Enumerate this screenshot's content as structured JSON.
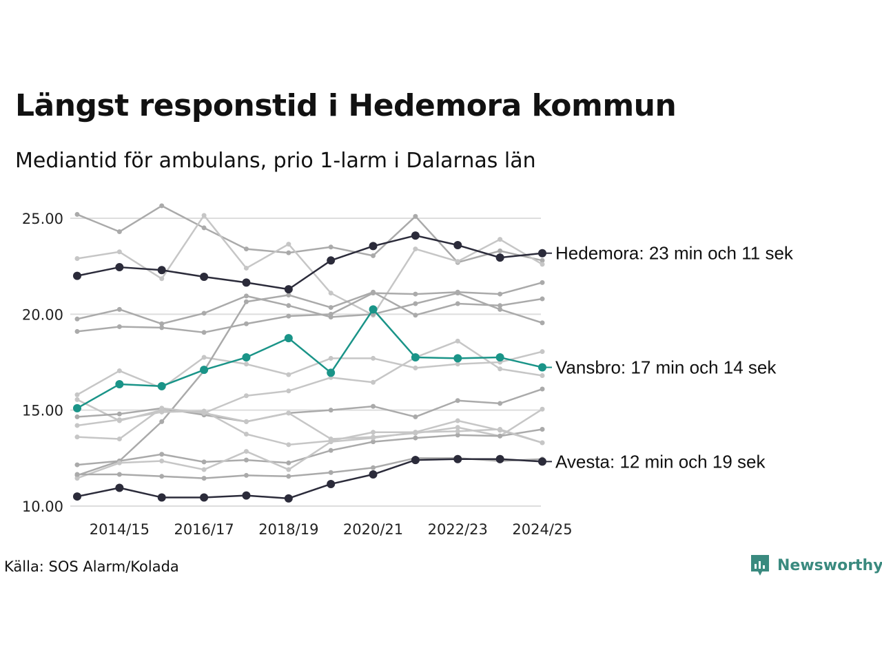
{
  "title": "Längst responstid i Hedemora kommun",
  "subtitle": "Mediantid för ambulans, prio 1-larm i Dalarnas län",
  "source": "Källa: SOS Alarm/Kolada",
  "brand": {
    "name": "Newsworthy",
    "icon": "newsworthy-logo-icon",
    "color": "#3a8a7f"
  },
  "colors": {
    "highlight_dark": "#2b2b3a",
    "highlight_teal": "#1a9488",
    "background_lines": [
      "#aaaaaa",
      "#c6c6c6"
    ],
    "grid": "#dddddd"
  },
  "chart_data": {
    "type": "line",
    "x": [
      "2013/14",
      "2014/15",
      "2015/16",
      "2016/17",
      "2017/18",
      "2018/19",
      "2019/20",
      "2020/21",
      "2021/22",
      "2022/23",
      "2023/24",
      "2024/25"
    ],
    "x_tick_labels": [
      "2014/15",
      "2016/17",
      "2018/19",
      "2020/21",
      "2022/23",
      "2024/25"
    ],
    "y_ticks": [
      10,
      15,
      20,
      25
    ],
    "y_tick_labels": [
      "10.00",
      "15.00",
      "20.00",
      "25.00"
    ],
    "ylim": [
      10,
      25.8
    ],
    "grid": "horizontal",
    "xlabel": "",
    "ylabel": "",
    "highlighted": [
      {
        "label": "Hedemora: 23 min och 11 sek",
        "color": "#2b2b3a",
        "values": [
          22.0,
          22.45,
          22.3,
          21.95,
          21.65,
          21.3,
          22.8,
          23.55,
          24.1,
          23.6,
          22.95,
          23.18
        ]
      },
      {
        "label": "Vansbro: 17 min och 14 sek",
        "color": "#1a9488",
        "values": [
          15.1,
          16.35,
          16.25,
          17.1,
          17.75,
          18.75,
          16.95,
          20.25,
          17.75,
          17.7,
          17.75,
          17.23
        ]
      },
      {
        "label": "Avesta: 12 min och 19 sek",
        "color": "#2b2b3a",
        "values": [
          10.5,
          10.95,
          10.45,
          10.45,
          10.55,
          10.4,
          11.15,
          11.65,
          12.4,
          12.45,
          12.45,
          12.32
        ]
      }
    ],
    "background_series": [
      {
        "values": [
          25.2,
          24.3,
          25.65,
          24.5,
          23.4,
          23.2,
          23.5,
          23.05,
          25.1,
          22.7,
          23.3,
          22.8
        ],
        "color": "#aaaaaa"
      },
      {
        "values": [
          22.9,
          23.25,
          21.85,
          25.15,
          22.4,
          23.65,
          21.1,
          19.95,
          23.4,
          22.75,
          23.9,
          22.6
        ],
        "color": "#c6c6c6"
      },
      {
        "values": [
          19.75,
          20.25,
          19.5,
          20.05,
          20.95,
          20.45,
          19.85,
          20.0,
          20.55,
          21.1,
          20.25,
          19.55
        ],
        "color": "#aaaaaa"
      },
      {
        "values": [
          19.1,
          19.35,
          19.3,
          19.05,
          19.5,
          19.9,
          20.0,
          21.1,
          21.05,
          21.15,
          21.05,
          21.65
        ],
        "color": "#aaaaaa"
      },
      {
        "values": [
          15.8,
          17.05,
          16.15,
          17.75,
          17.4,
          16.85,
          17.7,
          17.7,
          17.2,
          17.4,
          17.5,
          18.05
        ],
        "color": "#c6c6c6"
      },
      {
        "values": [
          15.55,
          14.45,
          15.0,
          14.85,
          15.75,
          16.0,
          16.7,
          16.45,
          17.75,
          18.6,
          17.15,
          16.8
        ],
        "color": "#c6c6c6"
      },
      {
        "values": [
          11.6,
          12.35,
          14.4,
          17.05,
          20.65,
          21.0,
          20.35,
          21.15,
          19.95,
          20.55,
          20.45,
          20.8
        ],
        "color": "#aaaaaa"
      },
      {
        "values": [
          14.65,
          14.8,
          15.1,
          14.75,
          14.4,
          14.85,
          15.0,
          15.2,
          14.65,
          15.5,
          15.35,
          16.1
        ],
        "color": "#aaaaaa"
      },
      {
        "values": [
          14.2,
          14.5,
          14.9,
          14.95,
          13.75,
          13.2,
          13.4,
          13.85,
          13.85,
          14.45,
          13.95,
          13.3
        ],
        "color": "#c6c6c6"
      },
      {
        "values": [
          13.6,
          13.5,
          15.1,
          14.85,
          14.4,
          14.85,
          13.5,
          13.6,
          13.8,
          14.1,
          13.65,
          15.05
        ],
        "color": "#c6c6c6"
      },
      {
        "values": [
          12.15,
          12.35,
          12.7,
          12.3,
          12.4,
          12.25,
          12.9,
          13.35,
          13.55,
          13.7,
          13.65,
          14.0
        ],
        "color": "#aaaaaa"
      },
      {
        "values": [
          11.45,
          12.25,
          12.35,
          11.9,
          12.85,
          11.9,
          13.35,
          13.55,
          13.85,
          13.9,
          14.0,
          13.3
        ],
        "color": "#c6c6c6"
      },
      {
        "values": [
          11.65,
          11.65,
          11.55,
          11.45,
          11.6,
          11.55,
          11.75,
          12.0,
          12.5,
          12.5,
          12.35,
          12.45
        ],
        "color": "#aaaaaa"
      }
    ]
  }
}
